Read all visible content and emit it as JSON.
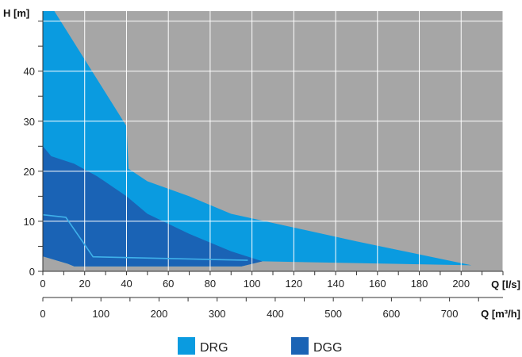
{
  "chart_data": {
    "type": "area",
    "y_axis": {
      "label": "H [m]",
      "range": [
        0,
        52
      ],
      "ticks": [
        0,
        10,
        20,
        30,
        40
      ]
    },
    "x_axis_primary": {
      "label": "Q [l/s]",
      "range": [
        0,
        220
      ],
      "ticks": [
        0,
        20,
        40,
        60,
        80,
        100,
        120,
        140,
        160,
        180,
        200
      ]
    },
    "x_axis_secondary": {
      "label": "Q [m³/h]",
      "range": [
        0,
        792
      ],
      "ticks": [
        0,
        100,
        200,
        300,
        400,
        500,
        600,
        700
      ]
    },
    "colors": {
      "plot_background": "#a6a6a6",
      "grid": "#ffffff",
      "DRG": "#0a9be0",
      "DGG": "#1a63b5",
      "inner_line": "#3fb1ea"
    },
    "series": [
      {
        "name": "DRG",
        "color": "#0a9be0",
        "upper": [
          [
            0,
            52
          ],
          [
            5.5,
            52
          ],
          [
            40,
            29
          ],
          [
            41,
            20.5
          ],
          [
            50,
            18
          ],
          [
            70,
            15
          ],
          [
            90,
            11.5
          ],
          [
            150,
            6
          ],
          [
            205,
            1.2
          ]
        ],
        "lower": [
          [
            205,
            1.2
          ],
          [
            105,
            2
          ],
          [
            95,
            1
          ],
          [
            15,
            1
          ],
          [
            12,
            1.5
          ],
          [
            0,
            3
          ]
        ]
      },
      {
        "name": "DGG",
        "color": "#1a63b5",
        "upper": [
          [
            0,
            25
          ],
          [
            4,
            23
          ],
          [
            15,
            21.5
          ],
          [
            26,
            19
          ],
          [
            40,
            15
          ],
          [
            50,
            11.5
          ],
          [
            70,
            7.5
          ],
          [
            90,
            4
          ],
          [
            105,
            2
          ]
        ],
        "lower": [
          [
            105,
            2
          ],
          [
            95,
            1
          ],
          [
            15,
            1
          ],
          [
            12,
            1.5
          ],
          [
            0,
            3
          ]
        ]
      }
    ],
    "inner_line": [
      [
        0,
        11.3
      ],
      [
        11,
        10.8
      ],
      [
        24,
        2.9
      ],
      [
        98,
        2.2
      ]
    ],
    "legend": {
      "position": "bottom-center",
      "items": [
        "DRG",
        "DGG"
      ]
    },
    "grid": true
  }
}
